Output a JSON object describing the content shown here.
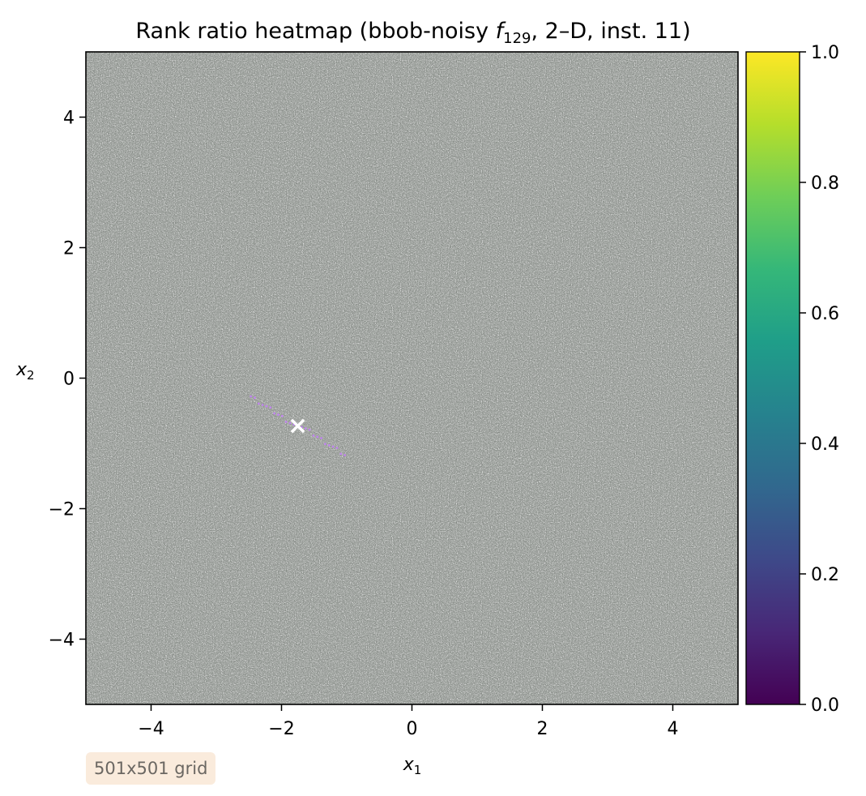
{
  "chart_data": {
    "type": "heatmap",
    "title": {
      "prefix": "Rank ratio heatmap (bbob-noisy ",
      "function_symbol": "f",
      "function_index": "129",
      "suffix": ", 2–D, inst. 11)"
    },
    "xlabel": {
      "symbol": "x",
      "subscript": "1"
    },
    "ylabel": {
      "symbol": "x",
      "subscript": "2"
    },
    "xlim": [
      -5,
      5
    ],
    "ylim": [
      -5,
      5
    ],
    "xticks": [
      -4,
      -2,
      0,
      2,
      4
    ],
    "yticks": [
      -4,
      -2,
      0,
      2,
      4
    ],
    "xtick_labels": [
      "−4",
      "−2",
      "0",
      "2",
      "4"
    ],
    "ytick_labels": [
      "−4",
      "−2",
      "0",
      "2",
      "4"
    ],
    "grid_size": [
      501,
      501
    ],
    "value_range": [
      0,
      1
    ],
    "noise_description": "rank ratio values appear near-random across the domain (speckled gray texture)",
    "optimum_marker": {
      "symbol": "×",
      "x": -1.75,
      "y": -0.73,
      "color": "#ffffff"
    },
    "colorbar": {
      "colormap": "viridis",
      "limits": [
        0,
        1
      ],
      "ticks": [
        0.0,
        0.2,
        0.4,
        0.6,
        0.8,
        1.0
      ],
      "tick_labels": [
        "0.0",
        "0.2",
        "0.4",
        "0.6",
        "0.8",
        "1.0"
      ],
      "stops": [
        "#440154",
        "#482777",
        "#3e4989",
        "#31688e",
        "#26828e",
        "#1f9e89",
        "#35b779",
        "#6ece58",
        "#b5de2b",
        "#fde725"
      ]
    },
    "annotation": "501x501 grid"
  }
}
